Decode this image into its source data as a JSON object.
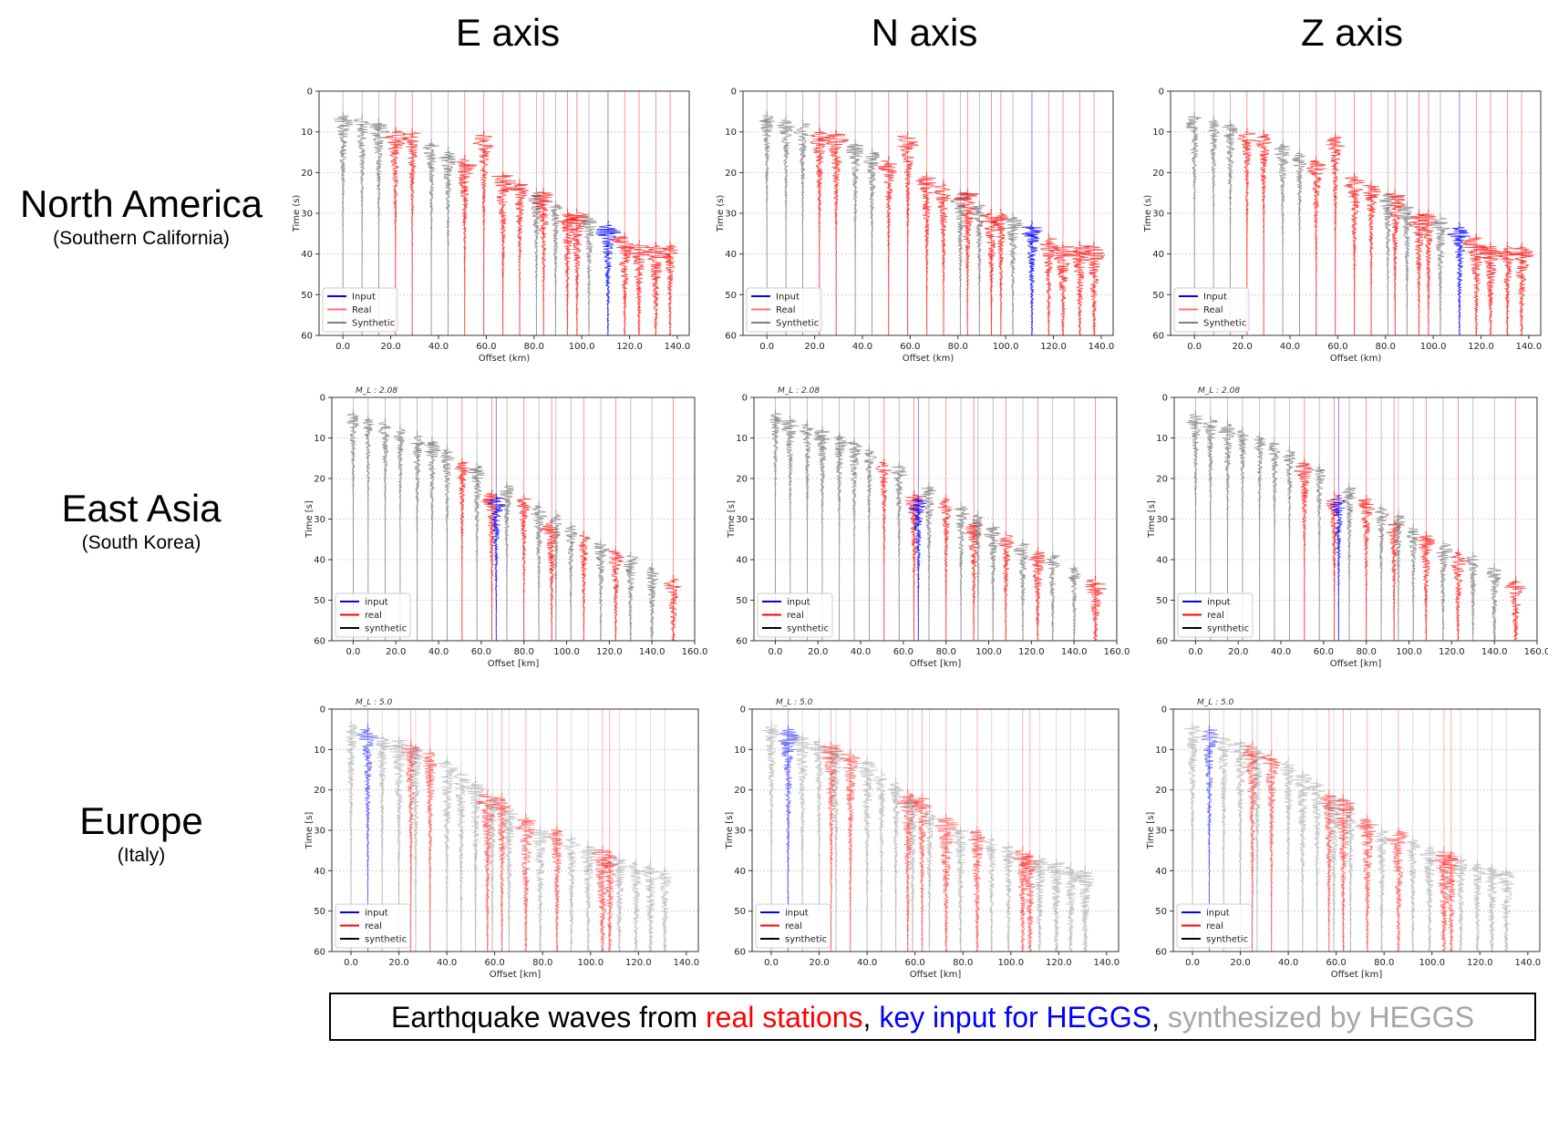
{
  "columns": [
    "E axis",
    "N axis",
    "Z axis"
  ],
  "rows": [
    {
      "name": "North America",
      "sub": "(Southern California)"
    },
    {
      "name": "East Asia",
      "sub": "(South Korea)"
    },
    {
      "name": "Europe",
      "sub": "(Italy)"
    }
  ],
  "caption": {
    "prefix": "Earthquake waves from ",
    "real": "real stations",
    "sep1": ", ",
    "input": "key input for HEGGS",
    "sep2": ", ",
    "synth": "synthesized by HEGGS"
  },
  "colors": {
    "input": "#0000ff",
    "real": "#ff0000",
    "synthetic": "#7f7f7f",
    "caption_synth": "#a6a6a6"
  },
  "chart_data": [
    {
      "type": "line",
      "region": "North America",
      "components": [
        "E axis",
        "N axis",
        "Z axis"
      ],
      "xlabel": "Offset (km)",
      "ylabel": "Time (s)",
      "xlim": [
        -10,
        145
      ],
      "ylim": [
        60,
        0
      ],
      "xticks": [
        "0.0",
        "20.0",
        "40.0",
        "60.0",
        "80.0",
        "100.0",
        "120.0",
        "140.0"
      ],
      "yticks": [
        "0",
        "10",
        "20",
        "30",
        "40",
        "50",
        "60"
      ],
      "grid": true,
      "annotation": "",
      "legend": {
        "placement": "lower-left",
        "entries": [
          "Input",
          "Real",
          "Synthetic"
        ]
      },
      "stations": [
        [
          0,
          6,
          "synthetic"
        ],
        [
          8,
          7,
          "synthetic"
        ],
        [
          15,
          8,
          "synthetic"
        ],
        [
          22,
          10,
          "real"
        ],
        [
          29,
          10.5,
          "real"
        ],
        [
          37,
          13,
          "synthetic"
        ],
        [
          44,
          15,
          "synthetic"
        ],
        [
          51,
          17,
          "real"
        ],
        [
          59,
          11,
          "real"
        ],
        [
          67,
          21,
          "real"
        ],
        [
          74,
          23,
          "real"
        ],
        [
          81,
          25,
          "synthetic"
        ],
        [
          84,
          25,
          "real"
        ],
        [
          89,
          28,
          "synthetic"
        ],
        [
          94,
          30,
          "real"
        ],
        [
          98,
          30,
          "real"
        ],
        [
          103,
          31,
          "synthetic"
        ],
        [
          111,
          33,
          "input"
        ],
        [
          118,
          36,
          "real"
        ],
        [
          124,
          38,
          "real"
        ],
        [
          131,
          38,
          "real"
        ],
        [
          137,
          38,
          "real"
        ]
      ]
    },
    {
      "type": "line",
      "region": "East Asia",
      "components": [
        "E axis",
        "N axis",
        "Z axis"
      ],
      "xlabel": "Offset [km]",
      "ylabel": "Time [s]",
      "xlim": [
        -10,
        160
      ],
      "ylim": [
        60,
        0
      ],
      "xticks": [
        "0.0",
        "20.0",
        "40.0",
        "60.0",
        "80.0",
        "100.0",
        "120.0",
        "140.0",
        "160.0"
      ],
      "yticks": [
        "0",
        "10",
        "20",
        "30",
        "40",
        "50",
        "60"
      ],
      "grid": true,
      "annotation": "M_L : 2.08",
      "legend": {
        "placement": "lower-left",
        "entries": [
          "input",
          "real",
          "synthetic"
        ]
      },
      "stations": [
        [
          0,
          4,
          "synthetic"
        ],
        [
          7,
          5.5,
          "synthetic"
        ],
        [
          15,
          6.5,
          "synthetic"
        ],
        [
          22,
          8,
          "synthetic"
        ],
        [
          30,
          9.5,
          "synthetic"
        ],
        [
          37,
          11,
          "synthetic"
        ],
        [
          44,
          13,
          "synthetic"
        ],
        [
          51,
          16,
          "real"
        ],
        [
          58,
          17,
          "synthetic"
        ],
        [
          65,
          24,
          "real"
        ],
        [
          67,
          25,
          "input"
        ],
        [
          72,
          22,
          "synthetic"
        ],
        [
          80,
          25,
          "real"
        ],
        [
          87,
          27,
          "synthetic"
        ],
        [
          93,
          31,
          "real"
        ],
        [
          95,
          29,
          "synthetic"
        ],
        [
          102,
          32,
          "synthetic"
        ],
        [
          108,
          34,
          "real"
        ],
        [
          116,
          36,
          "synthetic"
        ],
        [
          123,
          38,
          "real"
        ],
        [
          130,
          39,
          "synthetic"
        ],
        [
          140,
          42,
          "synthetic"
        ],
        [
          150,
          45,
          "real"
        ]
      ]
    },
    {
      "type": "line",
      "region": "Europe",
      "components": [
        "E axis",
        "N axis",
        "Z axis"
      ],
      "xlabel": "Offset [km]",
      "ylabel": "Time [s]",
      "xlim": [
        -8,
        145
      ],
      "ylim": [
        60,
        0
      ],
      "xticks": [
        "0.0",
        "20.0",
        "40.0",
        "60.0",
        "80.0",
        "100.0",
        "120.0",
        "140.0"
      ],
      "yticks": [
        "0",
        "10",
        "20",
        "30",
        "40",
        "50",
        "60"
      ],
      "grid": true,
      "annotation": "M_L : 5.0",
      "legend": {
        "placement": "lower-left",
        "entries": [
          "input",
          "real",
          "synthetic"
        ]
      },
      "stations": [
        [
          0,
          4,
          "synthetic"
        ],
        [
          7,
          5,
          "input"
        ],
        [
          13,
          7,
          "synthetic"
        ],
        [
          20,
          8,
          "synthetic"
        ],
        [
          25,
          9,
          "real"
        ],
        [
          27,
          10,
          "synthetic"
        ],
        [
          33,
          11,
          "real"
        ],
        [
          40,
          13,
          "synthetic"
        ],
        [
          46,
          16,
          "synthetic"
        ],
        [
          52,
          18,
          "synthetic"
        ],
        [
          57,
          21,
          "real"
        ],
        [
          59,
          22,
          "synthetic"
        ],
        [
          63,
          22,
          "real"
        ],
        [
          66,
          25,
          "synthetic"
        ],
        [
          73,
          27,
          "real"
        ],
        [
          79,
          30,
          "synthetic"
        ],
        [
          86,
          30,
          "real"
        ],
        [
          92,
          32,
          "synthetic"
        ],
        [
          99,
          34,
          "synthetic"
        ],
        [
          105,
          35,
          "real"
        ],
        [
          108,
          36,
          "real"
        ],
        [
          112,
          37,
          "synthetic"
        ],
        [
          119,
          38,
          "synthetic"
        ],
        [
          125,
          39,
          "synthetic"
        ],
        [
          131,
          40,
          "synthetic"
        ]
      ]
    }
  ]
}
